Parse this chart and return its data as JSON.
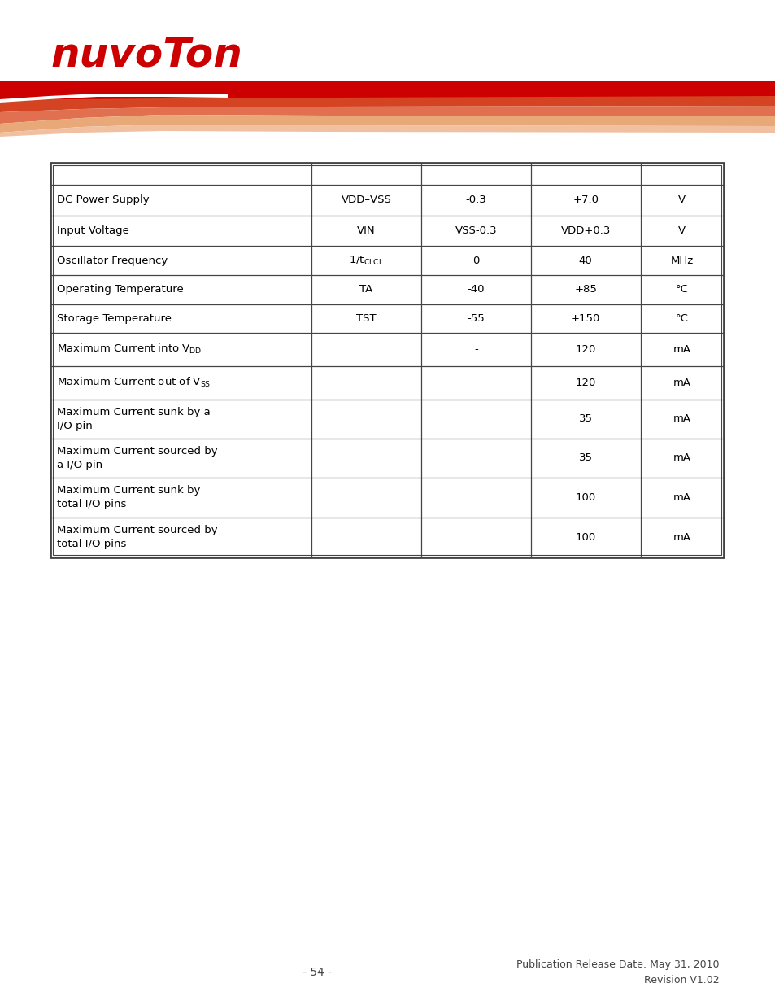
{
  "page_bg": "#ffffff",
  "text_color": "#000000",
  "table_border_color": "#444444",
  "rows": [
    [
      "DC Power Supply",
      "VDD–VSS",
      "-0.3",
      "+7.0",
      "V"
    ],
    [
      "Input Voltage",
      "VIN",
      "VSS-0.3",
      "VDD+0.3",
      "V"
    ],
    [
      "Oscillator Frequency",
      "1/t_CLCL",
      "0",
      "40",
      "MHz"
    ],
    [
      "Operating Temperature",
      "TA",
      "-40",
      "+85",
      "°C"
    ],
    [
      "Storage Temperature",
      "TST",
      "-55",
      "+150",
      "°C"
    ],
    [
      "Maximum Current into V_DD",
      "",
      "-",
      "120",
      "mA"
    ],
    [
      "Maximum Current out of V_SS",
      "",
      "",
      "120",
      "mA"
    ],
    [
      "Maximum Current sunk by a\nI/O pin",
      "",
      "",
      "35",
      "mA"
    ],
    [
      "Maximum Current sourced by\na I/O pin",
      "",
      "",
      "35",
      "mA"
    ],
    [
      "Maximum Current sunk by\ntotal I/O pins",
      "",
      "",
      "100",
      "mA"
    ],
    [
      "Maximum Current sourced by\ntotal I/O pins",
      "",
      "",
      "100",
      "mA"
    ]
  ],
  "footer_left": "- 54 -",
  "footer_right_line1": "Publication Release Date: May 31, 2010",
  "footer_right_line2": "Revision V1.02",
  "font_size_table": 9.5,
  "logo_color": "#cc0000",
  "bar_red": "#cc0000",
  "bar_orange1": "#d44422",
  "bar_orange2": "#e07050",
  "bar_peach": "#e8a878",
  "bar_light": "#f0c0a0"
}
